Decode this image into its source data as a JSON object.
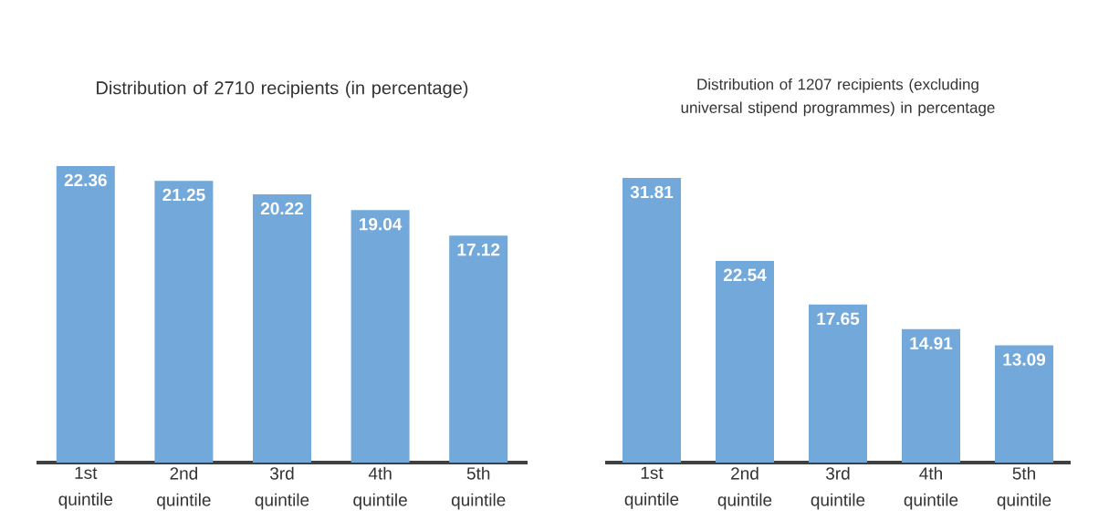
{
  "chart_data": [
    {
      "type": "bar",
      "title": "Distribution of 2710 recipients (in percentage)",
      "categories": [
        "1st quintile",
        "2nd quintile",
        "3rd quintile",
        "4th quintile",
        "5th quintile"
      ],
      "values": [
        22.36,
        21.25,
        20.22,
        19.04,
        17.12
      ],
      "color": "#72a8da",
      "data_labels": true
    },
    {
      "type": "bar",
      "title": "Distribution of 1207 recipients (excluding universal stipend programmes) in percentage",
      "categories": [
        "1st quintile",
        "2nd quintile",
        "3rd quintile",
        "4th quintile",
        "5th quintile"
      ],
      "values": [
        31.81,
        22.54,
        17.65,
        14.91,
        13.09
      ],
      "color": "#72a8da",
      "data_labels": true
    }
  ]
}
